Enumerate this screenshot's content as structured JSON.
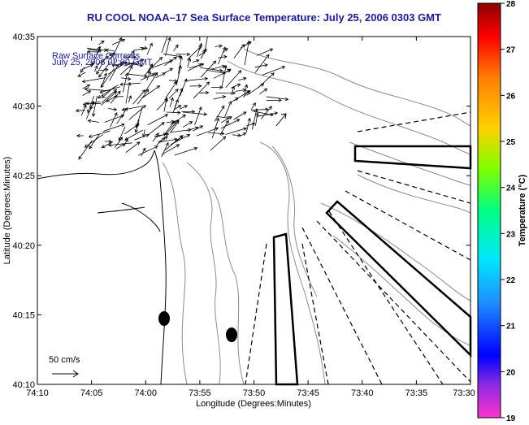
{
  "title": "RU COOL  NOAA–17  Sea Surface Temperature:  July 25, 2006 0303 GMT",
  "annotation": {
    "line1": "Raw Surface Currents",
    "line2": "July 25, 2006 02:00 GMT"
  },
  "scale_label": "50 cm/s",
  "x_axis": {
    "label": "Longitude (Degrees:Minutes)",
    "ticks": [
      "74:10",
      "74:05",
      "74:00",
      "73:55",
      "73:50",
      "73:45",
      "73:40",
      "73:35",
      "73:30"
    ]
  },
  "y_axis": {
    "label": "Latitude (Degrees:Minutes)",
    "ticks": [
      "40:10",
      "40:15",
      "40:20",
      "40:25",
      "40:30",
      "40:35"
    ]
  },
  "colorbar": {
    "label": "Temperature (°C)",
    "ticks": [
      "19",
      "20",
      "21",
      "22",
      "23",
      "24",
      "25",
      "26",
      "27",
      "28"
    ],
    "range": [
      19,
      28
    ]
  },
  "colors": {
    "title": "#1a1aa6",
    "arrows": "#000000",
    "contours": "#8c8c8c"
  }
}
